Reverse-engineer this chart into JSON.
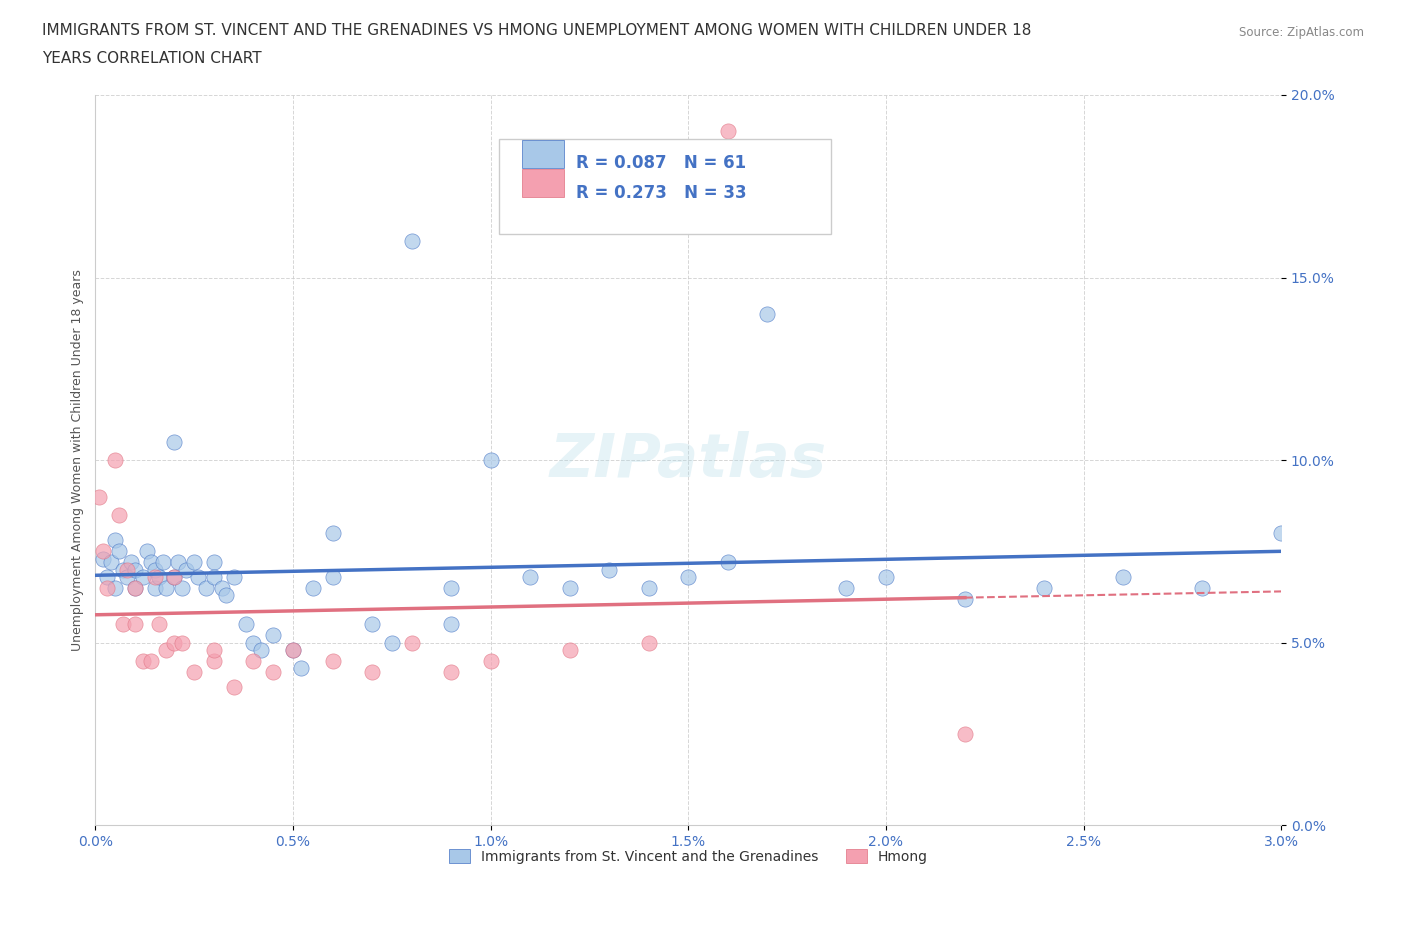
{
  "title_line1": "IMMIGRANTS FROM ST. VINCENT AND THE GRENADINES VS HMONG UNEMPLOYMENT AMONG WOMEN WITH CHILDREN UNDER 18",
  "title_line2": "YEARS CORRELATION CHART",
  "source": "Source: ZipAtlas.com",
  "xlabel_ticks": [
    "0.0%",
    "0.5%",
    "1.0%",
    "1.5%",
    "2.0%",
    "2.5%",
    "3.0%"
  ],
  "ylabel_ticks": [
    "0.0%",
    "5.0%",
    "10.0%",
    "15.0%",
    "20.0%"
  ],
  "ylabel_label": "Unemployment Among Women with Children Under 18 years",
  "blue_R": 0.087,
  "blue_N": 61,
  "pink_R": 0.273,
  "pink_N": 33,
  "blue_scatter_x": [
    0.0002,
    0.0003,
    0.0004,
    0.0005,
    0.0005,
    0.0006,
    0.0007,
    0.0008,
    0.0009,
    0.001,
    0.001,
    0.0012,
    0.0013,
    0.0014,
    0.0015,
    0.0015,
    0.0016,
    0.0017,
    0.0018,
    0.002,
    0.002,
    0.0021,
    0.0022,
    0.0023,
    0.0025,
    0.0026,
    0.0028,
    0.003,
    0.003,
    0.0032,
    0.0033,
    0.0035,
    0.0038,
    0.004,
    0.0042,
    0.0045,
    0.005,
    0.0052,
    0.0055,
    0.006,
    0.006,
    0.007,
    0.0075,
    0.008,
    0.009,
    0.009,
    0.01,
    0.011,
    0.012,
    0.013,
    0.014,
    0.015,
    0.016,
    0.017,
    0.019,
    0.02,
    0.022,
    0.024,
    0.026,
    0.028,
    0.03
  ],
  "blue_scatter_y": [
    0.073,
    0.068,
    0.072,
    0.078,
    0.065,
    0.075,
    0.07,
    0.068,
    0.072,
    0.065,
    0.07,
    0.068,
    0.075,
    0.072,
    0.065,
    0.07,
    0.068,
    0.072,
    0.065,
    0.105,
    0.068,
    0.072,
    0.065,
    0.07,
    0.072,
    0.068,
    0.065,
    0.072,
    0.068,
    0.065,
    0.063,
    0.068,
    0.055,
    0.05,
    0.048,
    0.052,
    0.048,
    0.043,
    0.065,
    0.068,
    0.08,
    0.055,
    0.05,
    0.16,
    0.055,
    0.065,
    0.1,
    0.068,
    0.065,
    0.07,
    0.065,
    0.068,
    0.072,
    0.14,
    0.065,
    0.068,
    0.062,
    0.065,
    0.068,
    0.065,
    0.08
  ],
  "pink_scatter_x": [
    0.0001,
    0.0002,
    0.0003,
    0.0005,
    0.0006,
    0.0007,
    0.0008,
    0.001,
    0.001,
    0.0012,
    0.0014,
    0.0015,
    0.0016,
    0.0018,
    0.002,
    0.002,
    0.0022,
    0.0025,
    0.003,
    0.003,
    0.0035,
    0.004,
    0.0045,
    0.005,
    0.006,
    0.007,
    0.008,
    0.009,
    0.01,
    0.012,
    0.014,
    0.016,
    0.022
  ],
  "pink_scatter_y": [
    0.09,
    0.075,
    0.065,
    0.1,
    0.085,
    0.055,
    0.07,
    0.065,
    0.055,
    0.045,
    0.045,
    0.068,
    0.055,
    0.048,
    0.068,
    0.05,
    0.05,
    0.042,
    0.045,
    0.048,
    0.038,
    0.045,
    0.042,
    0.048,
    0.045,
    0.042,
    0.05,
    0.042,
    0.045,
    0.048,
    0.05,
    0.19,
    0.025
  ],
  "blue_line_color": "#4472c4",
  "pink_line_color": "#e07080",
  "pink_dot_color": "#f4a0b0",
  "blue_dot_color": "#a8c8e8",
  "grid_color": "#cccccc",
  "grid_dash": [
    4,
    4
  ],
  "watermark": "ZIPatlas",
  "background_color": "#ffffff",
  "title_fontsize": 11,
  "axis_tick_fontsize": 10,
  "legend_bottom_blue": "Immigrants from St. Vincent and the Grenadines",
  "legend_bottom_pink": "Hmong"
}
